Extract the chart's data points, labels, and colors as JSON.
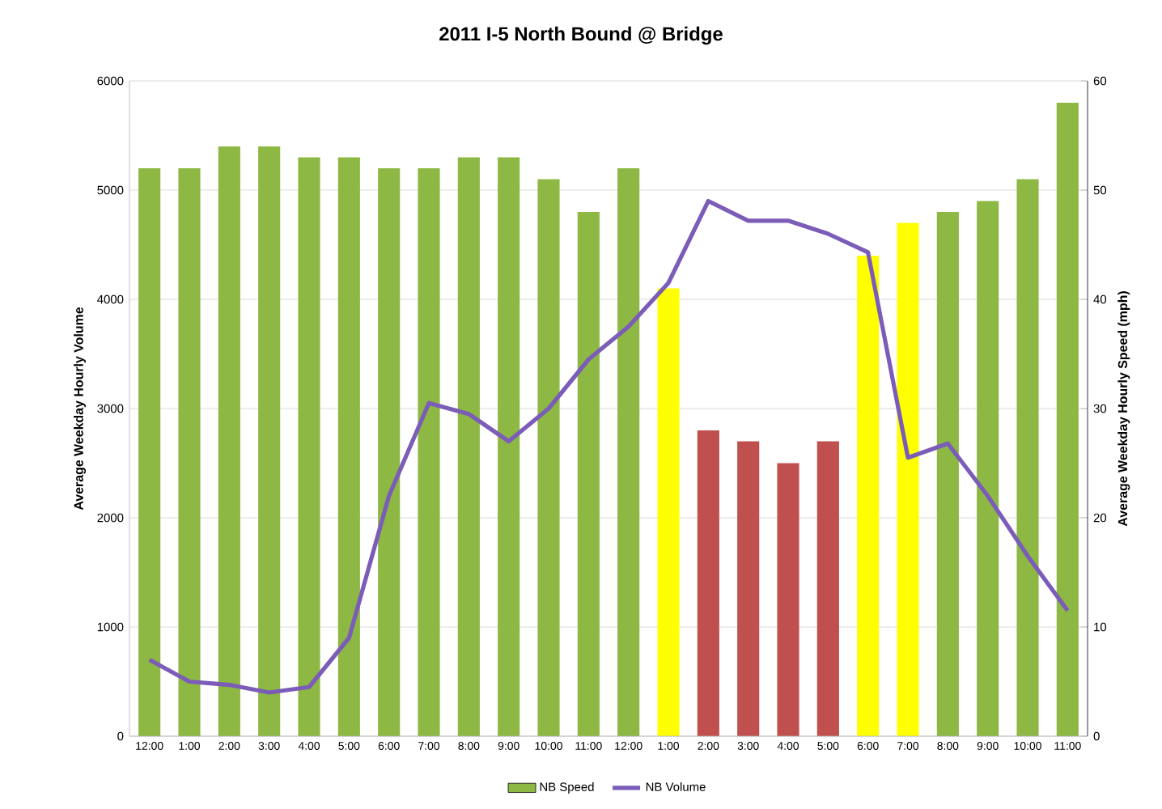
{
  "chart_data": {
    "type": "bar",
    "title": "2011 I-5 North Bound @ Bridge",
    "ylabel": "Average Weekday Hourly Volume",
    "y2label": "Average Weekday Hourly Speed (mph)",
    "categories": [
      "12:00",
      "1:00",
      "2:00",
      "3:00",
      "4:00",
      "5:00",
      "6:00",
      "7:00",
      "8:00",
      "9:00",
      "10:00",
      "11:00",
      "12:00",
      "1:00",
      "2:00",
      "3:00",
      "4:00",
      "5:00",
      "6:00",
      "7:00",
      "8:00",
      "9:00",
      "10:00",
      "11:00"
    ],
    "series": [
      {
        "name": "NB Speed",
        "axis": "y2",
        "color": "#8db843",
        "colors": [
          "#8db843",
          "#8db843",
          "#8db843",
          "#8db843",
          "#8db843",
          "#8db843",
          "#8db843",
          "#8db843",
          "#8db843",
          "#8db843",
          "#8db843",
          "#8db843",
          "#8db843",
          "#ffff00",
          "#c0504d",
          "#c0504d",
          "#c0504d",
          "#c0504d",
          "#ffff00",
          "#ffff00",
          "#8db843",
          "#8db843",
          "#8db843",
          "#8db843"
        ],
        "values": [
          52,
          52,
          54,
          54,
          53,
          53,
          52,
          52,
          53,
          53,
          51,
          48,
          52,
          41,
          28,
          27,
          25,
          27,
          44,
          47,
          48,
          49,
          51,
          58
        ]
      },
      {
        "name": "NB Volume",
        "type": "line",
        "color": "#7b5cb8",
        "values": [
          700,
          500,
          470,
          400,
          450,
          900,
          2200,
          3050,
          2950,
          2700,
          3000,
          3450,
          3750,
          4150,
          4900,
          4720,
          4720,
          4600,
          4430,
          2550,
          2680,
          2200,
          1650,
          1150
        ]
      }
    ],
    "ylim": [
      0,
      6000
    ],
    "yticks": [
      0,
      1000,
      2000,
      3000,
      4000,
      5000,
      6000
    ],
    "y2lim": [
      0,
      60
    ],
    "y2ticks": [
      0,
      10,
      20,
      30,
      40,
      50,
      60
    ],
    "grid": "y",
    "legend": "bottom"
  }
}
